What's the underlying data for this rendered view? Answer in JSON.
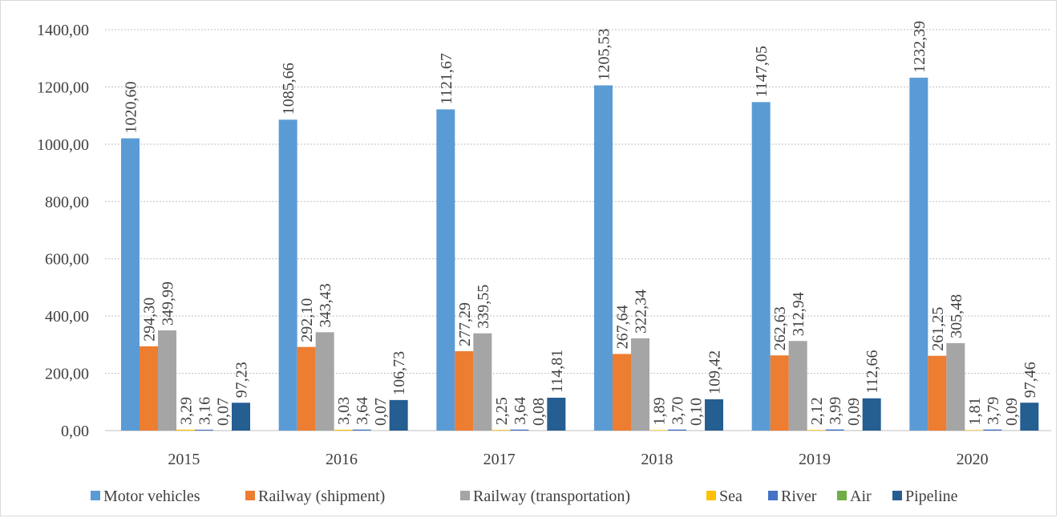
{
  "chart_data": {
    "type": "bar",
    "categories": [
      "2015",
      "2016",
      "2017",
      "2018",
      "2019",
      "2020"
    ],
    "series": [
      {
        "name": "Motor vehicles",
        "color": "#5b9bd5",
        "values": [
          1020.6,
          1085.66,
          1121.67,
          1205.53,
          1147.05,
          1232.39
        ],
        "labels": [
          "1020,60",
          "1085,66",
          "1121,67",
          "1205,53",
          "1147,05",
          "1232,39"
        ]
      },
      {
        "name": "Railway (shipment)",
        "color": "#ed7d31",
        "values": [
          294.3,
          292.1,
          277.29,
          267.64,
          262.63,
          261.25
        ],
        "labels": [
          "294,30",
          "292,10",
          "277,29",
          "267,64",
          "262,63",
          "261,25"
        ]
      },
      {
        "name": "Railway (transportation)",
        "color": "#a5a5a5",
        "values": [
          349.99,
          343.43,
          339.55,
          322.34,
          312.94,
          305.48
        ],
        "labels": [
          "349,99",
          "343,43",
          "339,55",
          "322,34",
          "312,94",
          "305,48"
        ]
      },
      {
        "name": "Sea",
        "color": "#ffc000",
        "values": [
          3.29,
          3.03,
          2.25,
          1.89,
          2.12,
          1.81
        ],
        "labels": [
          "3,29",
          "3,03",
          "2,25",
          "1,89",
          "2,12",
          "1,81"
        ]
      },
      {
        "name": "River",
        "color": "#4472c4",
        "values": [
          3.16,
          3.64,
          3.64,
          3.7,
          3.99,
          3.79
        ],
        "labels": [
          "3,16",
          "3,64",
          "3,64",
          "3,70",
          "3,99",
          "3,79"
        ]
      },
      {
        "name": "Air",
        "color": "#70ad47",
        "values": [
          0.07,
          0.07,
          0.08,
          0.1,
          0.09,
          0.09
        ],
        "labels": [
          "0,07",
          "0,07",
          "0,08",
          "0,10",
          "0,09",
          "0,09"
        ]
      },
      {
        "name": "Pipeline",
        "color": "#255e91",
        "values": [
          97.23,
          106.73,
          114.81,
          109.42,
          112.66,
          97.46
        ],
        "labels": [
          "97,23",
          "106,73",
          "114,81",
          "109,42",
          "112,66",
          "97,46"
        ]
      }
    ],
    "y_ticks": [
      "0,00",
      "200,00",
      "400,00",
      "600,00",
      "800,00",
      "1000,00",
      "1200,00",
      "1400,00"
    ],
    "ylim": [
      0,
      1400
    ],
    "grid": true,
    "legend_position": "bottom"
  }
}
